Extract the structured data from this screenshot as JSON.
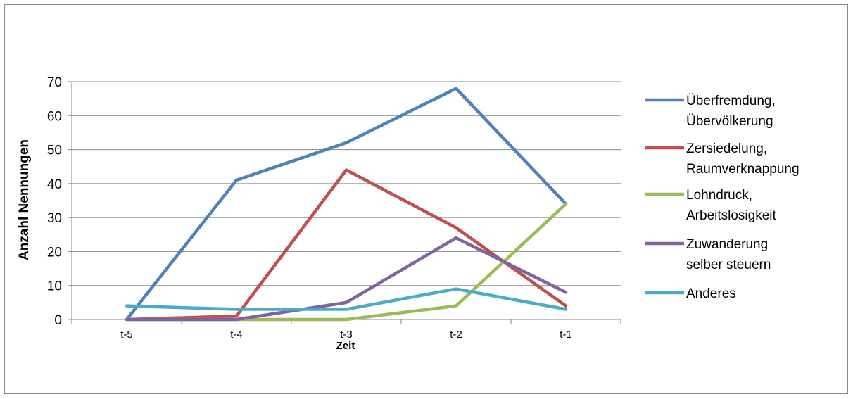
{
  "chart_data": {
    "type": "line",
    "title": "",
    "xlabel": "Zeit",
    "ylabel": "Anzahl Nennungen",
    "categories": [
      "t-5",
      "t-4",
      "t-3",
      "t-2",
      "t-1"
    ],
    "ylim": [
      0,
      70
    ],
    "yticks": [
      0,
      10,
      20,
      30,
      40,
      50,
      60,
      70
    ],
    "grid": true,
    "legend_position": "right",
    "series": [
      {
        "name": "Überfremdung, Übervölkerung",
        "legend_lines": [
          "Überfremdung,",
          "Übervölkerung"
        ],
        "color": "#4F81BD",
        "values": [
          0,
          41,
          52,
          68,
          34
        ]
      },
      {
        "name": "Zersiedelung, Raumverknappung",
        "legend_lines": [
          "Zersiedelung,",
          "Raumverknappung"
        ],
        "color": "#C0504D",
        "values": [
          0,
          1,
          44,
          27,
          4
        ]
      },
      {
        "name": "Lohndruck, Arbeitslosigkeit",
        "legend_lines": [
          "Lohndruck,",
          "Arbeitslosigkeit"
        ],
        "color": "#9BBB59",
        "values": [
          0,
          0,
          0,
          4,
          34
        ]
      },
      {
        "name": "Zuwanderung selber steuern",
        "legend_lines": [
          "Zuwanderung",
          "selber steuern"
        ],
        "color": "#8064A2",
        "values": [
          0,
          0,
          5,
          24,
          8
        ]
      },
      {
        "name": "Anderes",
        "legend_lines": [
          "Anderes"
        ],
        "color": "#4BACC6",
        "values": [
          4,
          3,
          3,
          9,
          3
        ]
      }
    ]
  }
}
